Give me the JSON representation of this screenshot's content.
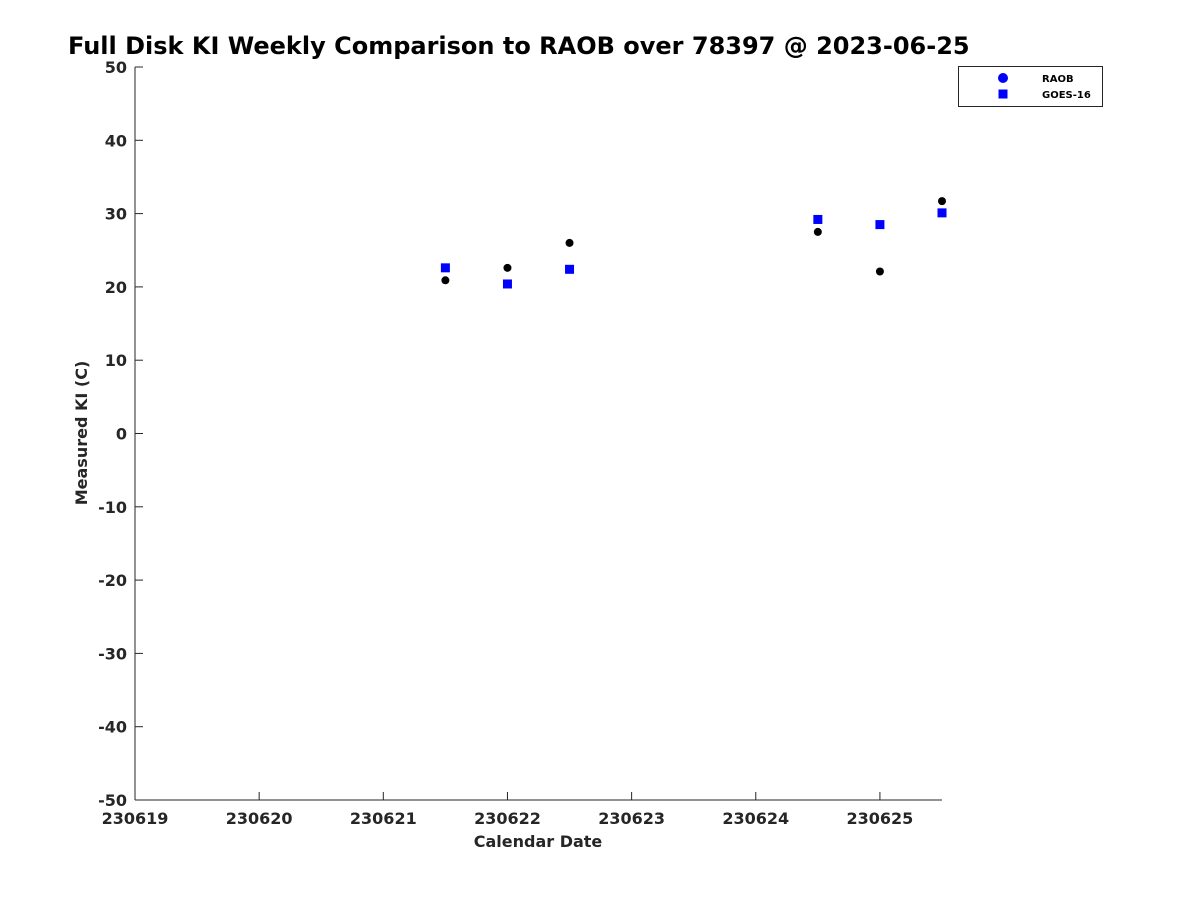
{
  "chart_data": {
    "type": "scatter",
    "title": "Full Disk KI Weekly Comparison to RAOB over 78397 @ 2023-06-25",
    "xlabel": "Calendar Date",
    "ylabel": "Measured KI (C)",
    "xlim": [
      230619,
      230625.5
    ],
    "ylim": [
      -50,
      50
    ],
    "xticks": [
      230619,
      230620,
      230621,
      230622,
      230623,
      230624,
      230625
    ],
    "xtick_labels": [
      "230619",
      "230620",
      "230621",
      "230622",
      "230623",
      "230624",
      "230625"
    ],
    "yticks": [
      -50,
      -40,
      -30,
      -20,
      -10,
      0,
      10,
      20,
      30,
      40,
      50
    ],
    "ytick_labels": [
      "-50",
      "-40",
      "-30",
      "-20",
      "-10",
      "0",
      "10",
      "20",
      "30",
      "40",
      "50"
    ],
    "grid": false,
    "legend_position": "top-right",
    "series": [
      {
        "name": "RAOB",
        "marker": "circle",
        "color": "#000000",
        "legend_color": "#0000ff",
        "x": [
          230621.5,
          230622,
          230622.5,
          230624.5,
          230625,
          230625.5
        ],
        "y": [
          20.9,
          22.6,
          26.0,
          27.5,
          22.1,
          31.7
        ]
      },
      {
        "name": "GOES-16",
        "marker": "square",
        "color": "#0000ff",
        "legend_color": "#0000ff",
        "x": [
          230621.5,
          230622,
          230622.5,
          230624.5,
          230625,
          230625.5
        ],
        "y": [
          22.6,
          20.4,
          22.4,
          29.2,
          28.5,
          30.1
        ]
      }
    ]
  }
}
